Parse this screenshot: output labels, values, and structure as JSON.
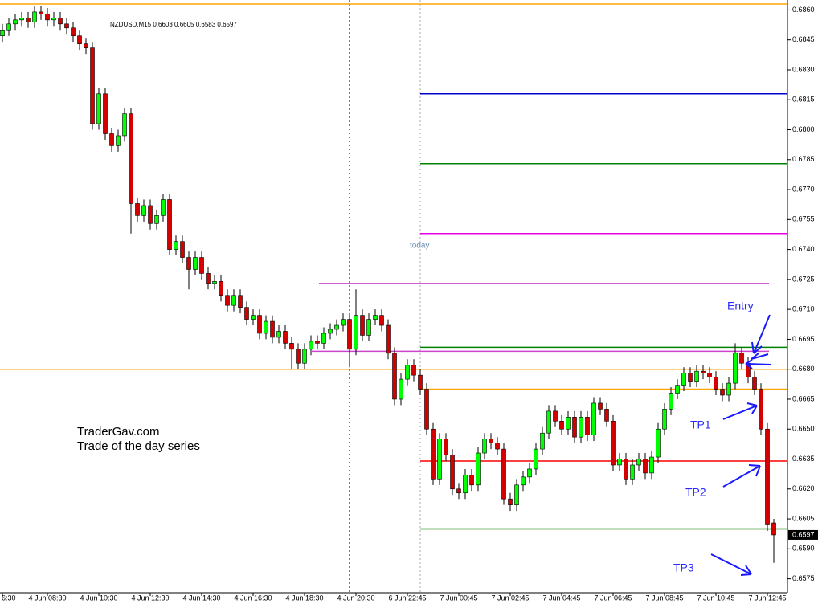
{
  "chart_data": {
    "type": "candlestick",
    "header": "NZDUSD,M15  0.6603 0.6605 0.6583 0.6597",
    "today_label": "today",
    "brand": "TraderGav.com",
    "series_note": "Trade of the day series",
    "labels": [
      "Entry",
      "TP1",
      "TP2",
      "TP3"
    ],
    "up_color": "#00ff00",
    "down_color": "#d40000",
    "ylim": [
      0.6568,
      0.6865
    ],
    "yticks": [
      {
        "value": 0.686,
        "label": "0.6860"
      },
      {
        "value": 0.6845,
        "label": "0.6845"
      },
      {
        "value": 0.683,
        "label": "0.6830"
      },
      {
        "value": 0.6815,
        "label": "0.6815"
      },
      {
        "value": 0.68,
        "label": "0.6800"
      },
      {
        "value": 0.6785,
        "label": "0.6785"
      },
      {
        "value": 0.677,
        "label": "0.6770"
      },
      {
        "value": 0.6755,
        "label": "0.6755"
      },
      {
        "value": 0.674,
        "label": "0.6740"
      },
      {
        "value": 0.6725,
        "label": "0.6725"
      },
      {
        "value": 0.671,
        "label": "0.6710"
      },
      {
        "value": 0.6695,
        "label": "0.6695"
      },
      {
        "value": 0.668,
        "label": "0.6680"
      },
      {
        "value": 0.6665,
        "label": "0.6665"
      },
      {
        "value": 0.665,
        "label": "0.6650"
      },
      {
        "value": 0.6635,
        "label": "0.6635"
      },
      {
        "value": 0.662,
        "label": "0.6620"
      },
      {
        "value": 0.6605,
        "label": "0.6605"
      },
      {
        "value": 0.659,
        "label": "0.6590"
      },
      {
        "value": 0.6575,
        "label": "0.6575"
      }
    ],
    "levels": [
      {
        "value": 0.6863,
        "color": "#ffa500"
      },
      {
        "value": 0.6818,
        "color": "#0000cc"
      },
      {
        "value": 0.6783,
        "color": "#008000"
      },
      {
        "value": 0.6748,
        "color": "#e600e6"
      },
      {
        "value": 0.6723,
        "color": "#cc44cc"
      },
      {
        "value": 0.6691,
        "color": "#008000"
      },
      {
        "value": 0.6689,
        "color": "#cc44cc"
      },
      {
        "value": 0.668,
        "color": "#ffa500"
      },
      {
        "value": 0.667,
        "color": "#ffa500"
      },
      {
        "value": 0.6634,
        "color": "#ff0000"
      },
      {
        "value": 0.66,
        "color": "#008000"
      }
    ],
    "categories": [
      "6:30",
      null,
      null,
      null,
      null,
      null,
      null,
      "4 Jun 08:30",
      null,
      null,
      null,
      null,
      null,
      null,
      null,
      "4 Jun 10:30",
      null,
      null,
      null,
      null,
      null,
      null,
      null,
      "4 Jun 12:30",
      null,
      null,
      null,
      null,
      null,
      null,
      null,
      "4 Jun 14:30",
      null,
      null,
      null,
      null,
      null,
      null,
      null,
      "4 Jun 16:30",
      null,
      null,
      null,
      null,
      null,
      null,
      null,
      "4 Jun 18:30",
      null,
      null,
      null,
      null,
      null,
      null,
      null,
      "4 Jun 20:30",
      null,
      null,
      null,
      null,
      null,
      null,
      null,
      "6 Jun 22:45",
      null,
      null,
      null,
      null,
      null,
      null,
      null,
      "7 Jun 00:45",
      null,
      null,
      null,
      null,
      null,
      null,
      null,
      "7 Jun 02:45",
      null,
      null,
      null,
      null,
      null,
      null,
      null,
      "7 Jun 04:45",
      null,
      null,
      null,
      null,
      null,
      null,
      null,
      "7 Jun 06:45",
      null,
      null,
      null,
      null,
      null,
      null,
      null,
      "7 Jun 08:45",
      null,
      null,
      null,
      null,
      null,
      null,
      null,
      "7 Jun 10:45",
      null,
      null,
      null,
      null,
      null,
      null,
      null,
      "7 Jun 12:45",
      null
    ],
    "open": [
      0.6847,
      0.685,
      0.6853,
      0.6855,
      0.6856,
      0.6854,
      0.6859,
      0.6858,
      0.6855,
      0.6856,
      0.6853,
      0.6851,
      0.6847,
      0.6843,
      0.6841,
      0.6803,
      0.6818,
      0.6798,
      0.6792,
      0.6797,
      0.6808,
      0.6763,
      0.6757,
      0.6762,
      0.6753,
      0.6757,
      0.6765,
      0.674,
      0.6744,
      0.6736,
      0.673,
      0.6736,
      0.6728,
      0.6723,
      0.6724,
      0.6717,
      0.6712,
      0.6717,
      0.6711,
      0.6705,
      0.6707,
      0.6698,
      0.6704,
      0.6696,
      0.6699,
      0.6693,
      0.669,
      0.6683,
      0.669,
      0.6694,
      0.6693,
      0.6698,
      0.67,
      0.6702,
      0.6705,
      0.669,
      0.6707,
      0.6697,
      0.6705,
      0.6707,
      0.6702,
      0.6688,
      0.6665,
      0.6675,
      0.6682,
      0.6677,
      0.667,
      0.665,
      0.6625,
      0.6645,
      0.6637,
      0.662,
      0.6618,
      0.6627,
      0.6622,
      0.6638,
      0.6645,
      0.6643,
      0.664,
      0.6615,
      0.6612,
      0.6622,
      0.6626,
      0.663,
      0.664,
      0.6648,
      0.6659,
      0.6654,
      0.665,
      0.6656,
      0.6646,
      0.6656,
      0.6647,
      0.6663,
      0.666,
      0.6654,
      0.6632,
      0.6635,
      0.6625,
      0.6632,
      0.6635,
      0.6628,
      0.6636,
      0.665,
      0.666,
      0.6668,
      0.6672,
      0.6678,
      0.6674,
      0.6679,
      0.6678,
      0.6676,
      0.667,
      0.6667,
      0.6673,
      0.6688,
      0.6683,
      0.6676,
      0.667,
      0.665,
      0.6603
    ],
    "high": [
      0.6853,
      0.6856,
      0.6858,
      0.6859,
      0.6859,
      0.6862,
      0.6862,
      0.6861,
      0.6859,
      0.6859,
      0.6856,
      0.6854,
      0.685,
      0.6846,
      0.6844,
      0.6821,
      0.6821,
      0.6801,
      0.68,
      0.6811,
      0.6811,
      0.6766,
      0.6765,
      0.6765,
      0.676,
      0.6768,
      0.6768,
      0.6747,
      0.6747,
      0.6739,
      0.6739,
      0.6739,
      0.6731,
      0.6727,
      0.6727,
      0.672,
      0.672,
      0.672,
      0.6714,
      0.671,
      0.671,
      0.6707,
      0.6707,
      0.6702,
      0.6702,
      0.6696,
      0.6693,
      0.6693,
      0.6697,
      0.6697,
      0.6701,
      0.6703,
      0.6705,
      0.6708,
      0.6708,
      0.672,
      0.671,
      0.6708,
      0.671,
      0.671,
      0.6705,
      0.6691,
      0.6678,
      0.6685,
      0.6685,
      0.668,
      0.6673,
      0.6653,
      0.6648,
      0.6648,
      0.664,
      0.6623,
      0.663,
      0.663,
      0.6641,
      0.6648,
      0.6648,
      0.6646,
      0.6643,
      0.6618,
      0.6625,
      0.6629,
      0.6633,
      0.6643,
      0.6651,
      0.6662,
      0.6662,
      0.6657,
      0.6659,
      0.6659,
      0.6659,
      0.6659,
      0.6666,
      0.6666,
      0.6663,
      0.6657,
      0.6638,
      0.6638,
      0.6635,
      0.6638,
      0.6638,
      0.6639,
      0.6653,
      0.6663,
      0.6671,
      0.6675,
      0.6681,
      0.6681,
      0.6682,
      0.6682,
      0.6681,
      0.6679,
      0.6673,
      0.6676,
      0.6693,
      0.6691,
      0.6686,
      0.6679,
      0.6673,
      0.6653,
      0.6605
    ],
    "low": [
      0.6844,
      0.6847,
      0.685,
      0.6852,
      0.6851,
      0.6851,
      0.6855,
      0.6852,
      0.6852,
      0.685,
      0.6848,
      0.6844,
      0.684,
      0.6838,
      0.68,
      0.68,
      0.6795,
      0.6789,
      0.6789,
      0.6794,
      0.6748,
      0.6754,
      0.6754,
      0.675,
      0.675,
      0.6754,
      0.6737,
      0.6737,
      0.6733,
      0.672,
      0.6727,
      0.6725,
      0.672,
      0.672,
      0.6714,
      0.6709,
      0.6709,
      0.6708,
      0.6702,
      0.6702,
      0.6695,
      0.6695,
      0.6693,
      0.6693,
      0.669,
      0.668,
      0.668,
      0.668,
      0.6687,
      0.669,
      0.669,
      0.6695,
      0.6697,
      0.6699,
      0.6681,
      0.6687,
      0.6694,
      0.6694,
      0.6702,
      0.6699,
      0.6685,
      0.6662,
      0.6662,
      0.6672,
      0.6674,
      0.6667,
      0.6647,
      0.6622,
      0.6622,
      0.6634,
      0.6617,
      0.6615,
      0.6615,
      0.6619,
      0.6619,
      0.6635,
      0.664,
      0.6637,
      0.6612,
      0.6609,
      0.6609,
      0.6619,
      0.6623,
      0.6627,
      0.6637,
      0.6645,
      0.6651,
      0.6647,
      0.6647,
      0.6643,
      0.6643,
      0.6644,
      0.6644,
      0.6657,
      0.6651,
      0.6629,
      0.6629,
      0.6622,
      0.6622,
      0.6629,
      0.6625,
      0.6625,
      0.6633,
      0.6647,
      0.6657,
      0.6665,
      0.6669,
      0.6671,
      0.6671,
      0.6675,
      0.6673,
      0.6667,
      0.6664,
      0.6664,
      0.667,
      0.668,
      0.6673,
      0.6667,
      0.6647,
      0.6599,
      0.6583
    ],
    "close": [
      0.685,
      0.6853,
      0.6855,
      0.6856,
      0.6854,
      0.6859,
      0.6858,
      0.6855,
      0.6856,
      0.6853,
      0.6851,
      0.6847,
      0.6843,
      0.6841,
      0.6803,
      0.6818,
      0.6798,
      0.6792,
      0.6797,
      0.6808,
      0.6763,
      0.6757,
      0.6762,
      0.6753,
      0.6757,
      0.6765,
      0.674,
      0.6744,
      0.6736,
      0.673,
      0.6736,
      0.6728,
      0.6723,
      0.6724,
      0.6717,
      0.6712,
      0.6717,
      0.6711,
      0.6705,
      0.6707,
      0.6698,
      0.6704,
      0.6696,
      0.6699,
      0.6693,
      0.669,
      0.6683,
      0.669,
      0.6694,
      0.6693,
      0.6698,
      0.67,
      0.6702,
      0.6705,
      0.669,
      0.6707,
      0.6697,
      0.6705,
      0.6707,
      0.6702,
      0.6688,
      0.6665,
      0.6675,
      0.6682,
      0.6677,
      0.667,
      0.665,
      0.6625,
      0.6645,
      0.6637,
      0.662,
      0.6618,
      0.6627,
      0.6622,
      0.6638,
      0.6645,
      0.6643,
      0.664,
      0.6615,
      0.6612,
      0.6622,
      0.6626,
      0.663,
      0.664,
      0.6648,
      0.6659,
      0.6654,
      0.665,
      0.6656,
      0.6646,
      0.6656,
      0.6647,
      0.6663,
      0.666,
      0.6654,
      0.6632,
      0.6635,
      0.6625,
      0.6632,
      0.6635,
      0.6628,
      0.6636,
      0.665,
      0.666,
      0.6668,
      0.6672,
      0.6678,
      0.6674,
      0.6679,
      0.6678,
      0.6676,
      0.667,
      0.6667,
      0.6673,
      0.6688,
      0.6683,
      0.6676,
      0.667,
      0.665,
      0.6602,
      0.6597
    ]
  }
}
